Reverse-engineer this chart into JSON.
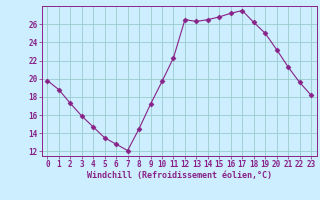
{
  "x": [
    0,
    1,
    2,
    3,
    4,
    5,
    6,
    7,
    8,
    9,
    10,
    11,
    12,
    13,
    14,
    15,
    16,
    17,
    18,
    19,
    20,
    21,
    22,
    23
  ],
  "y": [
    19.8,
    18.8,
    17.3,
    15.9,
    14.7,
    13.5,
    12.8,
    12.1,
    14.5,
    17.2,
    19.7,
    22.3,
    26.5,
    26.3,
    26.5,
    26.8,
    27.2,
    27.5,
    26.2,
    25.0,
    23.2,
    21.3,
    19.6,
    18.2
  ],
  "line_color": "#882288",
  "marker": "D",
  "marker_size": 2.5,
  "bg_color": "#cceeff",
  "grid_color": "#99cccc",
  "tick_color": "#882288",
  "label_color": "#882288",
  "xlabel": "Windchill (Refroidissement éolien,°C)",
  "ylim": [
    11.5,
    28.0
  ],
  "xlim": [
    -0.5,
    23.5
  ],
  "yticks": [
    12,
    14,
    16,
    18,
    20,
    22,
    24,
    26
  ],
  "xticks": [
    0,
    1,
    2,
    3,
    4,
    5,
    6,
    7,
    8,
    9,
    10,
    11,
    12,
    13,
    14,
    15,
    16,
    17,
    18,
    19,
    20,
    21,
    22,
    23
  ],
  "title_fontsize": 7,
  "tick_fontsize": 5.5,
  "label_fontsize": 6.0
}
